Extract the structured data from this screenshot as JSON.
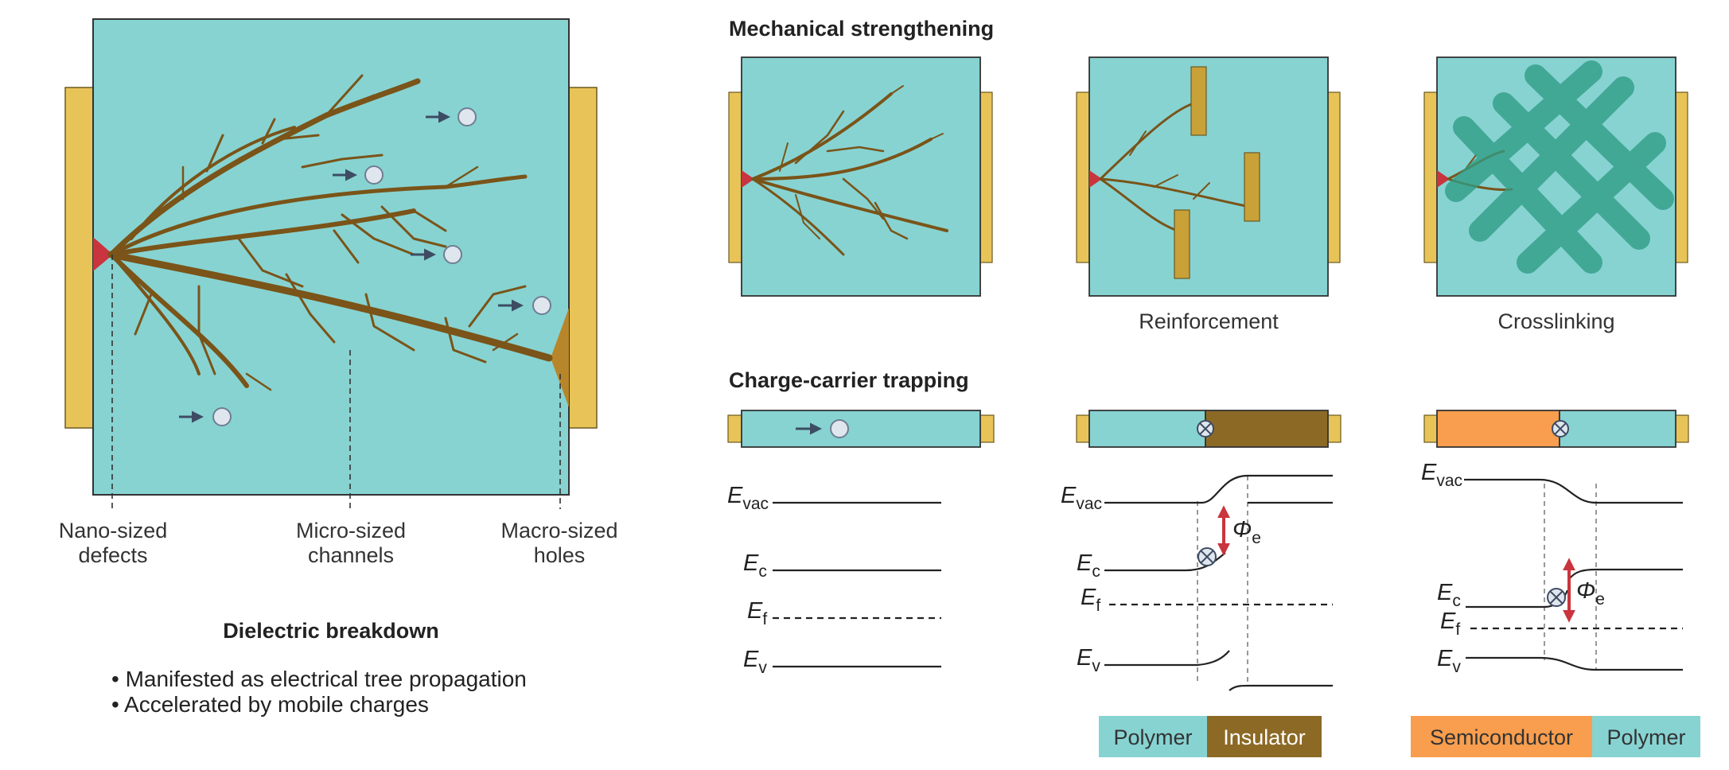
{
  "colors": {
    "dielectric": "#87d3d2",
    "electrode": "#e8c458",
    "tree": "#7a5418",
    "filler": "#c9a139",
    "insulator": "#8c6a26",
    "semiconductor": "#f89e4e",
    "tip": "#c9343e",
    "phi_arrow": "#c9343e",
    "crosslink": "#2f9d86"
  },
  "left_panel": {
    "labels": {
      "nano": [
        "Nano-sized",
        "defects"
      ],
      "micro": [
        "Micro-sized",
        "channels"
      ],
      "macro": [
        "Macro-sized",
        "holes"
      ]
    },
    "title": "Dielectric breakdown",
    "bullets": [
      "• Manifested as electrical tree propagation",
      "• Accelerated by mobile charges"
    ]
  },
  "mechanical": {
    "title": "Mechanical strengthening",
    "panels": [
      {
        "label": ""
      },
      {
        "label": "Reinforcement"
      },
      {
        "label": "Crosslinking"
      }
    ]
  },
  "trapping": {
    "title": "Charge-carrier trapping",
    "energy_levels": {
      "vac": {
        "main": "E",
        "sub": "vac"
      },
      "c": {
        "main": "E",
        "sub": "c"
      },
      "f": {
        "main": "E",
        "sub": "f"
      },
      "v": {
        "main": "E",
        "sub": "v"
      },
      "phi": {
        "main": "Φ",
        "sub": "e"
      }
    },
    "legend_insulator": [
      "Polymer",
      "Insulator"
    ],
    "legend_semiconductor": [
      "Semiconductor",
      "Polymer"
    ]
  }
}
